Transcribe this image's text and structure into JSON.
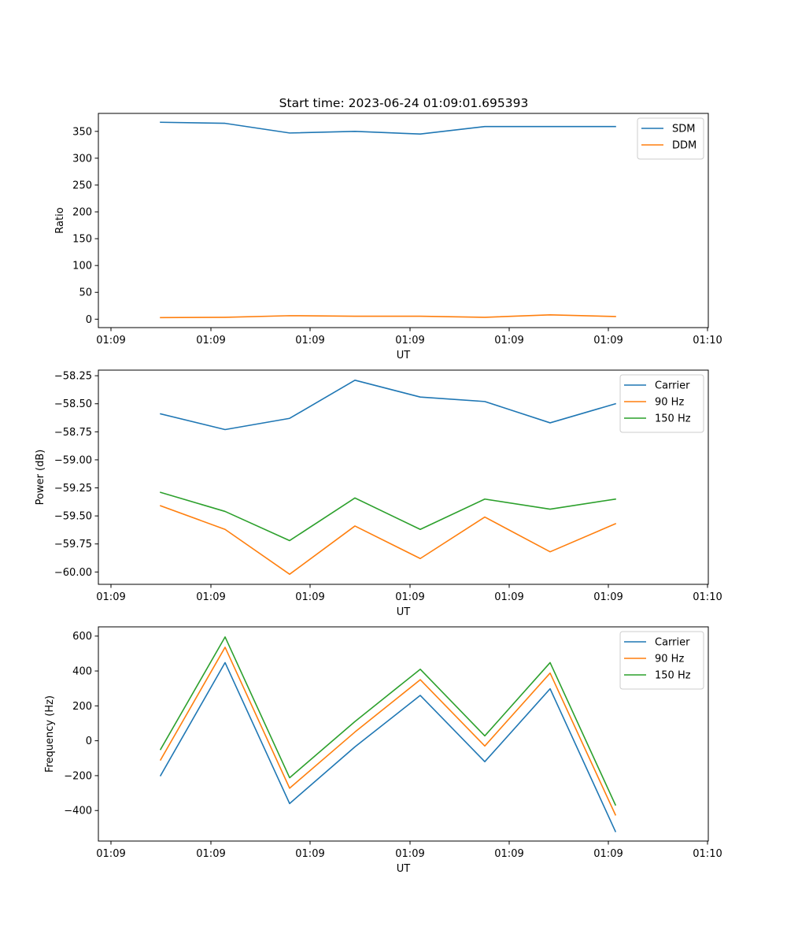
{
  "figure": {
    "title": "Start time: 2023-06-24 01:09:01.695393"
  },
  "chart_data": [
    {
      "type": "line",
      "xlabel": "UT",
      "ylabel": "Ratio",
      "x_tick_labels": [
        "01:09",
        "01:09",
        "01:09",
        "01:09",
        "01:09",
        "01:09",
        "01:10"
      ],
      "y_ticks": [
        0,
        50,
        100,
        150,
        200,
        250,
        300,
        350
      ],
      "y_tick_labels": [
        "0",
        "50",
        "100",
        "150",
        "200",
        "250",
        "300",
        "350"
      ],
      "ylim": [
        -15.7,
        383.5
      ],
      "legend_position": "top-right",
      "grid": false,
      "x": [
        1,
        2,
        3,
        4,
        5,
        6,
        7,
        8
      ],
      "series": [
        {
          "name": "SDM",
          "color": "#1f77b4",
          "values": [
            367,
            365,
            347,
            350,
            345,
            359,
            359,
            359
          ]
        },
        {
          "name": "DDM",
          "color": "#ff7f0e",
          "values": [
            3,
            3.5,
            6.5,
            5.5,
            5.5,
            3.5,
            8,
            5
          ]
        }
      ]
    },
    {
      "type": "line",
      "xlabel": "UT",
      "ylabel": "Power (dB)",
      "x_tick_labels": [
        "01:09",
        "01:09",
        "01:09",
        "01:09",
        "01:09",
        "01:09",
        "01:10"
      ],
      "y_ticks": [
        -60.0,
        -59.75,
        -59.5,
        -59.25,
        -59.0,
        -58.75,
        -58.5,
        -58.25
      ],
      "y_tick_labels": [
        "−60.00",
        "−59.75",
        "−59.50",
        "−59.25",
        "−59.00",
        "−58.75",
        "−58.50",
        "−58.25"
      ],
      "ylim": [
        -60.11,
        -58.2
      ],
      "legend_position": "top-right",
      "grid": false,
      "x": [
        1,
        2,
        3,
        4,
        5,
        6,
        7,
        8
      ],
      "series": [
        {
          "name": "Carrier",
          "color": "#1f77b4",
          "values": [
            -58.59,
            -58.73,
            -58.63,
            -58.29,
            -58.44,
            -58.48,
            -58.67,
            -58.5
          ]
        },
        {
          "name": "90 Hz",
          "color": "#ff7f0e",
          "values": [
            -59.41,
            -59.62,
            -60.02,
            -59.59,
            -59.88,
            -59.51,
            -59.82,
            -59.57
          ]
        },
        {
          "name": "150 Hz",
          "color": "#2ca02c",
          "values": [
            -59.29,
            -59.46,
            -59.72,
            -59.34,
            -59.62,
            -59.35,
            -59.44,
            -59.35
          ]
        }
      ]
    },
    {
      "type": "line",
      "xlabel": "UT",
      "ylabel": "Frequency (Hz)",
      "x_tick_labels": [
        "01:09",
        "01:09",
        "01:09",
        "01:09",
        "01:09",
        "01:09",
        "01:10"
      ],
      "y_ticks": [
        -400,
        -200,
        0,
        200,
        400,
        600
      ],
      "y_tick_labels": [
        "−400",
        "−200",
        "0",
        "200",
        "400",
        "600"
      ],
      "ylim": [
        -575,
        653
      ],
      "legend_position": "top-right",
      "grid": false,
      "x": [
        1,
        2,
        3,
        4,
        5,
        6,
        7,
        8
      ],
      "series": [
        {
          "name": "Carrier",
          "color": "#1f77b4",
          "values": [
            -200,
            448,
            -360,
            -35,
            260,
            -120,
            298,
            -520
          ]
        },
        {
          "name": "90 Hz",
          "color": "#ff7f0e",
          "values": [
            -110,
            536,
            -272,
            50,
            350,
            -30,
            388,
            -425
          ]
        },
        {
          "name": "150 Hz",
          "color": "#2ca02c",
          "values": [
            -50,
            595,
            -212,
            110,
            410,
            28,
            448,
            -368
          ]
        }
      ]
    }
  ]
}
